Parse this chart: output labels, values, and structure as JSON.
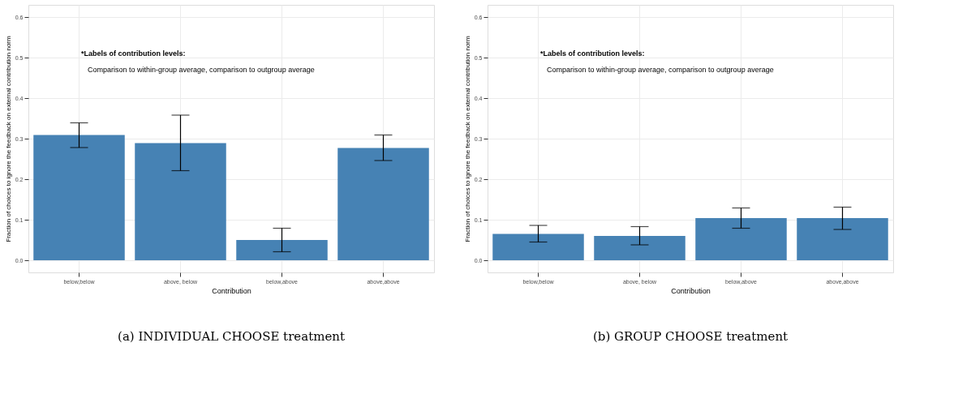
{
  "chart_data": [
    {
      "type": "bar",
      "title": "(a) INDIVIDUAL CHOOSE treatment",
      "xlabel": "Contribution",
      "ylabel": "Fraction of choices to ignore the feedback on external contribution norm",
      "categories": [
        "below,below",
        "above, below",
        "below,above",
        "above,above"
      ],
      "series": [
        {
          "color": "#4682b4",
          "values": [
            0.309,
            0.289,
            0.05,
            0.277
          ],
          "errors": [
            [
              0.278,
              0.339
            ],
            [
              0.221,
              0.358
            ],
            [
              0.021,
              0.079
            ],
            [
              0.246,
              0.309
            ]
          ]
        }
      ],
      "ylim": [
        -0.03,
        0.63
      ],
      "yticks": [
        {
          "value": 0,
          "label": "0.0"
        },
        0.1,
        0.2,
        0.3,
        0.4,
        0.5,
        0.6
      ],
      "grid": true,
      "annotations": [
        "*Labels of contribution levels:",
        "Comparison to within-group average, comparison to outgroup average"
      ]
    },
    {
      "type": "bar",
      "title": "(b) GROUP CHOOSE treatment",
      "xlabel": "Contribution",
      "ylabel": "Fraction of choices to ignore the feedback on external contribution norm",
      "categories": [
        "below,below",
        "above, below",
        "below,above",
        "above,above"
      ],
      "series": [
        {
          "color": "#4682b4",
          "values": [
            0.065,
            0.06,
            0.104,
            0.104
          ],
          "errors": [
            [
              0.045,
              0.086
            ],
            [
              0.038,
              0.083
            ],
            [
              0.079,
              0.129
            ],
            [
              0.076,
              0.131
            ]
          ]
        }
      ],
      "ylim": [
        -0.03,
        0.63
      ],
      "yticks": [
        {
          "value": 0,
          "label": "0.0"
        },
        0.1,
        0.2,
        0.3,
        0.4,
        0.5,
        0.6
      ],
      "grid": true,
      "annotations": [
        "*Labels of contribution levels:",
        "Comparison to within-group average, comparison to outgroup average"
      ]
    }
  ]
}
